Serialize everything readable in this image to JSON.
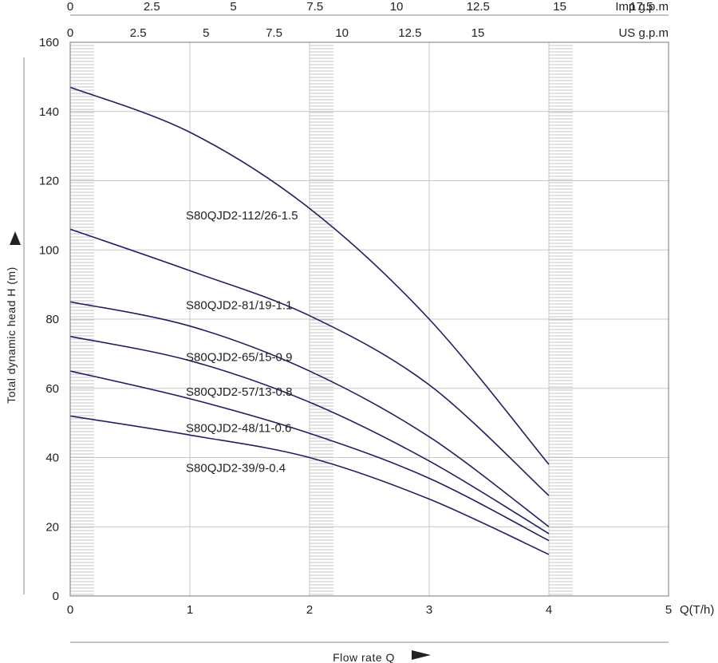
{
  "chart_data": {
    "type": "line",
    "xlabel": "Flow rate Q",
    "x_unit": "Q(T/h)",
    "ylabel": "Total dynamic head H (m)",
    "xlim": [
      0,
      5
    ],
    "ylim": [
      0,
      160
    ],
    "x_ticks": [
      0,
      1,
      2,
      3,
      4,
      5
    ],
    "y_ticks": [
      0,
      20,
      40,
      60,
      80,
      100,
      120,
      140,
      160
    ],
    "grid": true,
    "shaded_bands_x": [
      [
        0,
        0.2
      ],
      [
        2,
        2.2
      ],
      [
        4,
        4.2
      ]
    ],
    "secondary_axes": [
      {
        "label": "Imp g.p.m",
        "ticks": [
          "0",
          "2.5",
          "5",
          "7.5",
          "10",
          "12.5",
          "15",
          "17.5"
        ],
        "per_unit_q": 3.667
      },
      {
        "label": "US g.p.m",
        "ticks": [
          "0",
          "2.5",
          "5",
          "7.5",
          "10",
          "12.5",
          "15"
        ],
        "per_unit_q": 4.403
      }
    ],
    "series": [
      {
        "name": "S80QJD2-112/26-1.5",
        "x": [
          0,
          1,
          2,
          3,
          4
        ],
        "y": [
          147,
          134,
          112,
          80,
          38
        ],
        "label_at": [
          1,
          110
        ]
      },
      {
        "name": "S80QJD2-81/19-1.1",
        "x": [
          0,
          1,
          2,
          3,
          4
        ],
        "y": [
          106,
          94,
          81,
          61,
          29
        ],
        "label_at": [
          1,
          84
        ]
      },
      {
        "name": "S80QJD2-65/15-0.9",
        "x": [
          0,
          1,
          2,
          3,
          4
        ],
        "y": [
          85,
          78,
          65,
          46,
          20
        ],
        "label_at": [
          1,
          69
        ]
      },
      {
        "name": "S80QJD2-57/13-0.8",
        "x": [
          0,
          1,
          2,
          3,
          4
        ],
        "y": [
          75,
          68,
          56,
          39,
          18
        ],
        "label_at": [
          1,
          59
        ]
      },
      {
        "name": "S80QJD2-48/11-0.6",
        "x": [
          0,
          1,
          2,
          3,
          4
        ],
        "y": [
          65,
          57,
          47,
          34,
          16
        ],
        "label_at": [
          1,
          48.5
        ]
      },
      {
        "name": "S80QJD2-39/9-0.4",
        "x": [
          0,
          1,
          2,
          3,
          4
        ],
        "y": [
          52,
          46.5,
          40,
          28,
          12
        ],
        "label_at": [
          1,
          37
        ]
      }
    ],
    "colors": {
      "curve": "#1e2060",
      "grid": "#c8c8c8",
      "band_stripe": "#c4c4c4"
    }
  }
}
